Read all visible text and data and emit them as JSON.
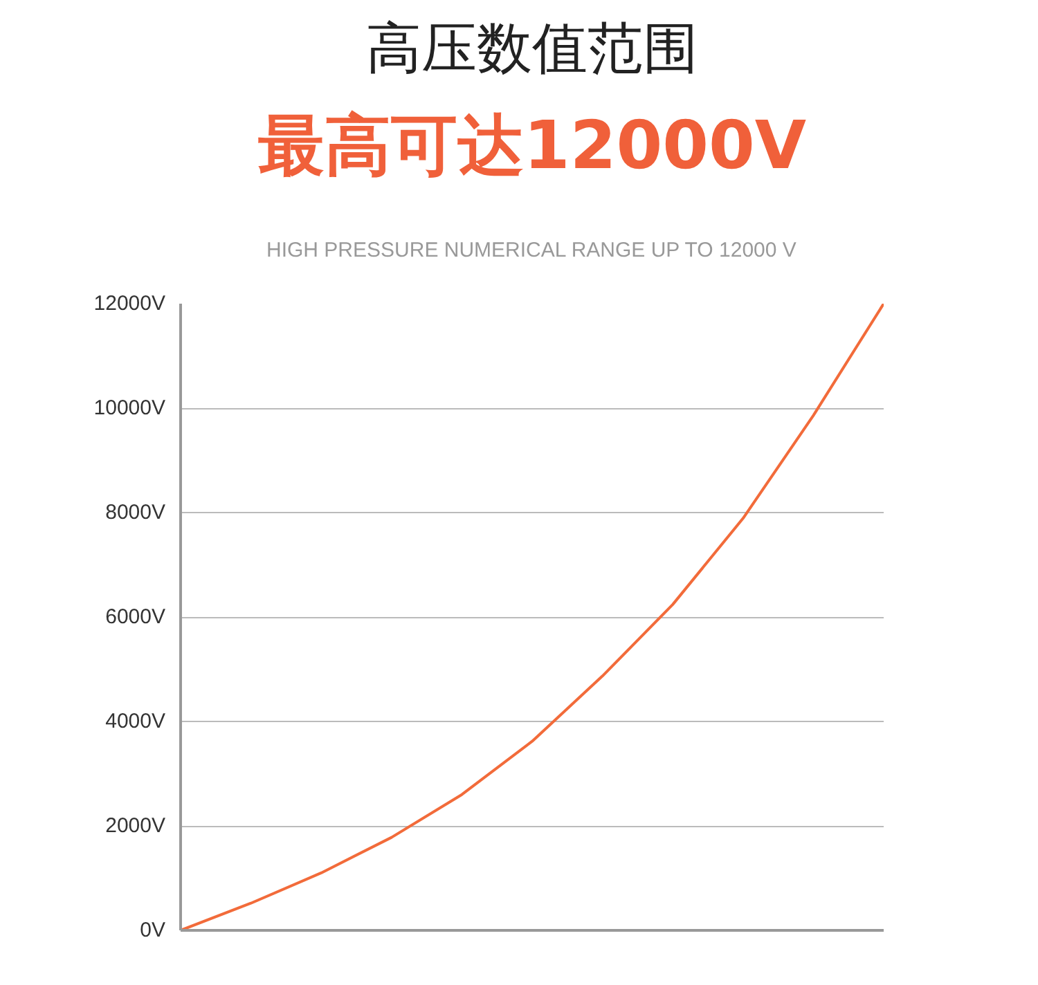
{
  "chart_data": {
    "type": "line",
    "title": "高压数值范围",
    "subtitle": "最高可达12000V",
    "annotations": [
      "HIGH PRESSURE NUMERICAL RANGE UP TO 12000 V"
    ],
    "categories": [
      null,
      null,
      null,
      null,
      null,
      null,
      null,
      null,
      null,
      null,
      null
    ],
    "series": [
      {
        "color": "#f26b3a",
        "values": [
          0,
          520,
          1100,
          1780,
          2600,
          3620,
          4870,
          6240,
          7890,
          9860,
          12000
        ]
      }
    ],
    "ylim": [
      0,
      12000
    ],
    "yticks": [
      {
        "value": 0,
        "label": "0V"
      },
      {
        "value": 2000,
        "label": "2000V"
      },
      {
        "value": 4000,
        "label": "4000V"
      },
      {
        "value": 6000,
        "label": "6000V"
      },
      {
        "value": 8000,
        "label": "8000V"
      },
      {
        "value": 10000,
        "label": "10000V"
      },
      {
        "value": 12000,
        "label": "12000V"
      }
    ],
    "grid": "y",
    "tick_labels": "y"
  }
}
